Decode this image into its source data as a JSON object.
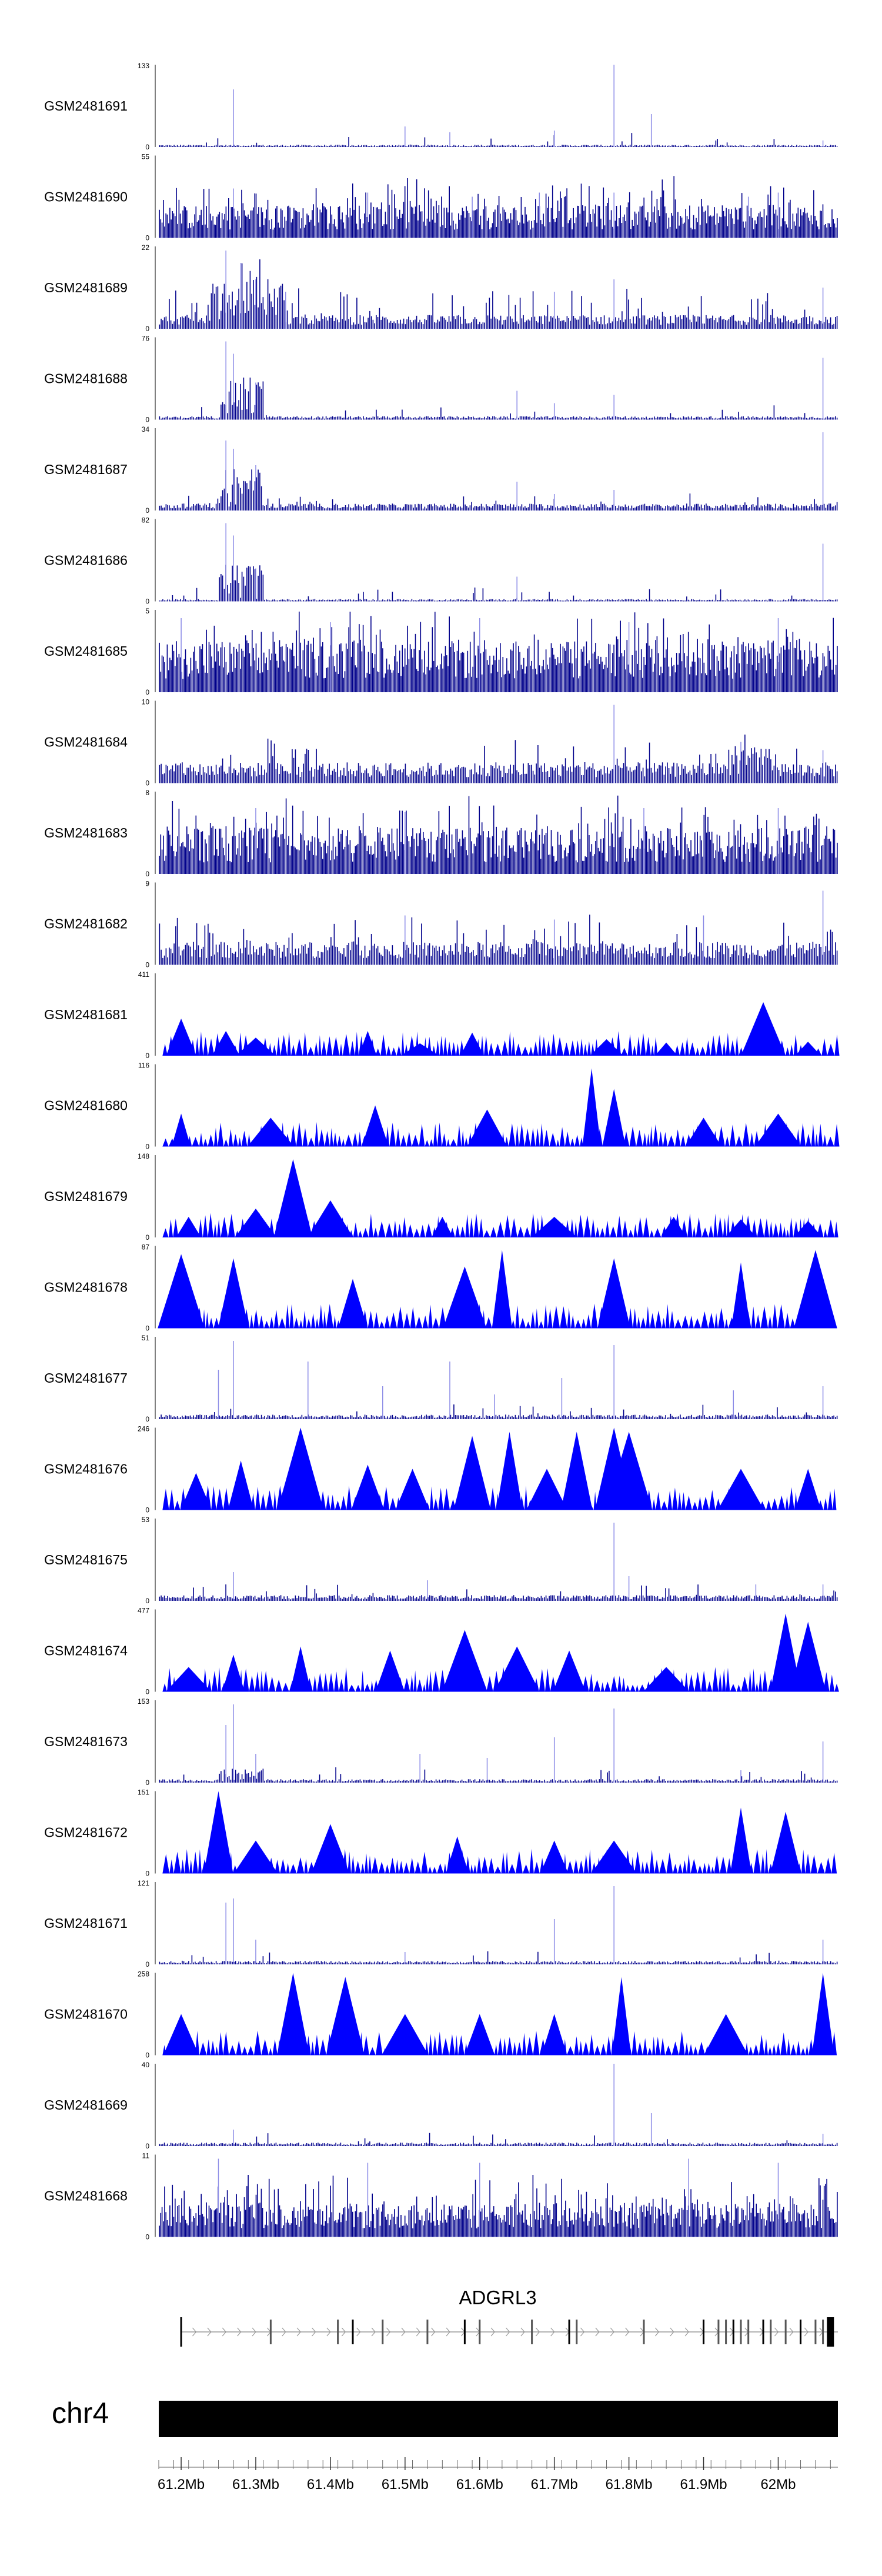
{
  "chart_data": {
    "type": "area",
    "x_unit": "Mb",
    "x_range": [
      61.17,
      62.08
    ],
    "x_ticks": [
      {
        "pos": 61.2,
        "label": "61.2Mb"
      },
      {
        "pos": 61.3,
        "label": "61.3Mb"
      },
      {
        "pos": 61.4,
        "label": "61.4Mb"
      },
      {
        "pos": 61.5,
        "label": "61.5Mb"
      },
      {
        "pos": 61.6,
        "label": "61.6Mb"
      },
      {
        "pos": 61.7,
        "label": "61.7Mb"
      },
      {
        "pos": 61.8,
        "label": "61.8Mb"
      },
      {
        "pos": 61.9,
        "label": "61.9Mb"
      },
      {
        "pos": 62.0,
        "label": "62Mb"
      }
    ],
    "chromosome": "chr4",
    "colors": {
      "signal": "#0000ff",
      "dense": "#00008b",
      "faint": "#8a8ae6",
      "gene": "#000000",
      "intron": "#999999"
    },
    "tracks": [
      {
        "name": "GSM2481691",
        "ymax": 133,
        "ymin_label": "0",
        "ymax_label": "133",
        "style": "sparse",
        "baseline": 0.02,
        "peaks": [
          [
            61.27,
            0.7
          ],
          [
            61.5,
            0.25
          ],
          [
            61.56,
            0.18
          ],
          [
            61.7,
            0.2
          ],
          [
            61.78,
            1.0
          ],
          [
            61.83,
            0.4
          ],
          [
            62.06,
            0.08
          ]
        ],
        "regions": []
      },
      {
        "name": "GSM2481690",
        "ymax": 55,
        "ymin_label": "0",
        "ymax_label": "55",
        "style": "dense",
        "baseline": 0.25,
        "peaks": [
          [
            61.27,
            0.6
          ],
          [
            61.45,
            0.55
          ],
          [
            61.59,
            0.5
          ],
          [
            61.68,
            0.55
          ],
          [
            61.78,
            0.55
          ],
          [
            61.96,
            0.5
          ],
          [
            62.0,
            0.55
          ]
        ],
        "regions": []
      },
      {
        "name": "GSM2481689",
        "ymax": 22,
        "ymin_label": "0",
        "ymax_label": "22",
        "style": "noisy",
        "baseline": 0.12,
        "peaks": [
          [
            61.26,
            0.95
          ],
          [
            61.28,
            0.8
          ],
          [
            61.3,
            0.6
          ],
          [
            61.34,
            0.45
          ],
          [
            61.7,
            0.45
          ],
          [
            61.78,
            0.6
          ],
          [
            62.06,
            0.5
          ]
        ],
        "regions": [
          [
            61.24,
            61.34,
            0.5
          ]
        ]
      },
      {
        "name": "GSM2481688",
        "ymax": 76,
        "ymin_label": "0",
        "ymax_label": "76",
        "style": "sparse",
        "baseline": 0.03,
        "peaks": [
          [
            61.26,
            0.95
          ],
          [
            61.27,
            0.8
          ],
          [
            61.3,
            0.45
          ],
          [
            61.65,
            0.35
          ],
          [
            61.7,
            0.2
          ],
          [
            61.78,
            0.3
          ],
          [
            62.06,
            0.75
          ]
        ],
        "regions": [
          [
            61.25,
            61.31,
            0.5
          ]
        ]
      },
      {
        "name": "GSM2481687",
        "ymax": 34,
        "ymin_label": "0",
        "ymax_label": "34",
        "style": "sparse",
        "baseline": 0.06,
        "peaks": [
          [
            61.26,
            0.85
          ],
          [
            61.27,
            0.75
          ],
          [
            61.3,
            0.55
          ],
          [
            61.65,
            0.35
          ],
          [
            61.7,
            0.2
          ],
          [
            61.78,
            0.25
          ],
          [
            62.06,
            0.95
          ]
        ],
        "regions": [
          [
            61.25,
            61.31,
            0.45
          ]
        ]
      },
      {
        "name": "GSM2481686",
        "ymax": 82,
        "ymin_label": "0",
        "ymax_label": "82",
        "style": "sparse",
        "baseline": 0.02,
        "peaks": [
          [
            61.26,
            0.95
          ],
          [
            61.27,
            0.8
          ],
          [
            61.3,
            0.4
          ],
          [
            61.65,
            0.3
          ],
          [
            62.06,
            0.7
          ]
        ],
        "regions": [
          [
            61.25,
            61.31,
            0.45
          ]
        ]
      },
      {
        "name": "GSM2481685",
        "ymax": 5,
        "ymin_label": "0",
        "ymax_label": "5",
        "style": "dense",
        "baseline": 0.4,
        "peaks": [
          [
            61.2,
            0.9
          ],
          [
            61.4,
            0.85
          ],
          [
            61.6,
            0.9
          ],
          [
            61.8,
            0.85
          ],
          [
            62.0,
            0.9
          ]
        ],
        "regions": []
      },
      {
        "name": "GSM2481684",
        "ymax": 10,
        "ymin_label": "0",
        "ymax_label": "10",
        "style": "noisy",
        "baseline": 0.18,
        "peaks": [
          [
            61.78,
            0.95
          ],
          [
            61.95,
            0.5
          ],
          [
            62.06,
            0.4
          ]
        ],
        "regions": [
          [
            61.93,
            61.99,
            0.35
          ]
        ]
      },
      {
        "name": "GSM2481683",
        "ymax": 8,
        "ymin_label": "0",
        "ymax_label": "8",
        "style": "dense",
        "baseline": 0.35,
        "peaks": [
          [
            61.3,
            0.8
          ],
          [
            61.5,
            0.75
          ],
          [
            61.82,
            0.8
          ],
          [
            62.0,
            0.8
          ]
        ],
        "regions": []
      },
      {
        "name": "GSM2481682",
        "ymax": 9,
        "ymin_label": "0",
        "ymax_label": "9",
        "style": "noisy",
        "baseline": 0.2,
        "peaks": [
          [
            61.5,
            0.6
          ],
          [
            61.7,
            0.55
          ],
          [
            61.9,
            0.6
          ],
          [
            62.06,
            0.9
          ]
        ],
        "regions": []
      },
      {
        "name": "GSM2481681",
        "ymax": 411,
        "ymin_label": "0",
        "ymax_label": "411",
        "style": "triangles",
        "baseline": 0.0,
        "peaks": [
          [
            61.2,
            0.45
          ],
          [
            61.26,
            0.3
          ],
          [
            61.3,
            0.22
          ],
          [
            61.45,
            0.3
          ],
          [
            61.52,
            0.15
          ],
          [
            61.59,
            0.28
          ],
          [
            61.77,
            0.2
          ],
          [
            61.85,
            0.16
          ],
          [
            61.98,
            0.65
          ],
          [
            62.04,
            0.17
          ]
        ],
        "regions": []
      },
      {
        "name": "GSM2481680",
        "ymax": 116,
        "ymin_label": "0",
        "ymax_label": "116",
        "style": "triangles",
        "baseline": 0.0,
        "peaks": [
          [
            61.2,
            0.4
          ],
          [
            61.32,
            0.35
          ],
          [
            61.46,
            0.5
          ],
          [
            61.61,
            0.45
          ],
          [
            61.75,
            0.95
          ],
          [
            61.78,
            0.7
          ],
          [
            61.9,
            0.35
          ],
          [
            62.0,
            0.4
          ]
        ],
        "regions": []
      },
      {
        "name": "GSM2481679",
        "ymax": 148,
        "ymin_label": "0",
        "ymax_label": "148",
        "style": "triangles",
        "baseline": 0.0,
        "peaks": [
          [
            61.21,
            0.25
          ],
          [
            61.3,
            0.35
          ],
          [
            61.35,
            0.95
          ],
          [
            61.4,
            0.45
          ],
          [
            61.55,
            0.25
          ],
          [
            61.7,
            0.25
          ],
          [
            61.86,
            0.25
          ],
          [
            61.95,
            0.22
          ],
          [
            62.04,
            0.2
          ]
        ],
        "regions": []
      },
      {
        "name": "GSM2481678",
        "ymax": 87,
        "ymin_label": "0",
        "ymax_label": "87",
        "style": "triangles",
        "baseline": 0.0,
        "peaks": [
          [
            61.2,
            0.9
          ],
          [
            61.27,
            0.85
          ],
          [
            61.43,
            0.6
          ],
          [
            61.58,
            0.75
          ],
          [
            61.63,
            0.95
          ],
          [
            61.78,
            0.85
          ],
          [
            61.95,
            0.8
          ],
          [
            62.05,
            0.95
          ]
        ],
        "regions": []
      },
      {
        "name": "GSM2481677",
        "ymax": 51,
        "ymin_label": "0",
        "ymax_label": "51",
        "style": "sparse",
        "baseline": 0.04,
        "peaks": [
          [
            61.25,
            0.6
          ],
          [
            61.27,
            0.95
          ],
          [
            61.37,
            0.7
          ],
          [
            61.47,
            0.4
          ],
          [
            61.56,
            0.7
          ],
          [
            61.62,
            0.3
          ],
          [
            61.71,
            0.5
          ],
          [
            61.78,
            0.9
          ],
          [
            61.94,
            0.35
          ],
          [
            62.06,
            0.4
          ]
        ],
        "regions": []
      },
      {
        "name": "GSM2481676",
        "ymax": 246,
        "ymin_label": "0",
        "ymax_label": "246",
        "style": "triangles",
        "baseline": 0.0,
        "peaks": [
          [
            61.22,
            0.45
          ],
          [
            61.28,
            0.6
          ],
          [
            61.36,
            1.0
          ],
          [
            61.45,
            0.55
          ],
          [
            61.51,
            0.5
          ],
          [
            61.59,
            0.9
          ],
          [
            61.64,
            0.95
          ],
          [
            61.69,
            0.5
          ],
          [
            61.73,
            0.95
          ],
          [
            61.78,
            1.0
          ],
          [
            61.8,
            0.95
          ],
          [
            61.95,
            0.5
          ],
          [
            62.04,
            0.5
          ]
        ],
        "regions": []
      },
      {
        "name": "GSM2481675",
        "ymax": 53,
        "ymin_label": "0",
        "ymax_label": "53",
        "style": "sparse",
        "baseline": 0.05,
        "peaks": [
          [
            61.27,
            0.35
          ],
          [
            61.53,
            0.25
          ],
          [
            61.78,
            0.95
          ],
          [
            61.8,
            0.3
          ],
          [
            61.97,
            0.2
          ],
          [
            62.06,
            0.2
          ]
        ],
        "regions": []
      },
      {
        "name": "GSM2481674",
        "ymax": 477,
        "ymin_label": "0",
        "ymax_label": "477",
        "style": "triangles",
        "baseline": 0.0,
        "peaks": [
          [
            61.21,
            0.3
          ],
          [
            61.27,
            0.45
          ],
          [
            61.36,
            0.55
          ],
          [
            61.48,
            0.5
          ],
          [
            61.58,
            0.75
          ],
          [
            61.65,
            0.55
          ],
          [
            61.72,
            0.5
          ],
          [
            61.85,
            0.3
          ],
          [
            62.01,
            0.95
          ],
          [
            62.04,
            0.85
          ]
        ],
        "regions": []
      },
      {
        "name": "GSM2481673",
        "ymax": 153,
        "ymin_label": "0",
        "ymax_label": "153",
        "style": "sparse",
        "baseline": 0.03,
        "peaks": [
          [
            61.26,
            0.7
          ],
          [
            61.27,
            0.95
          ],
          [
            61.3,
            0.35
          ],
          [
            61.52,
            0.35
          ],
          [
            61.61,
            0.3
          ],
          [
            61.7,
            0.55
          ],
          [
            61.78,
            0.9
          ],
          [
            61.95,
            0.15
          ],
          [
            62.06,
            0.5
          ]
        ],
        "regions": [
          [
            61.25,
            61.31,
            0.15
          ]
        ]
      },
      {
        "name": "GSM2481672",
        "ymax": 151,
        "ymin_label": "0",
        "ymax_label": "151",
        "style": "triangles",
        "baseline": 0.0,
        "peaks": [
          [
            61.25,
            1.0
          ],
          [
            61.3,
            0.4
          ],
          [
            61.4,
            0.6
          ],
          [
            61.57,
            0.45
          ],
          [
            61.7,
            0.4
          ],
          [
            61.78,
            0.4
          ],
          [
            61.95,
            0.8
          ],
          [
            62.01,
            0.75
          ]
        ],
        "regions": []
      },
      {
        "name": "GSM2481671",
        "ymax": 121,
        "ymin_label": "0",
        "ymax_label": "121",
        "style": "sparse",
        "baseline": 0.03,
        "peaks": [
          [
            61.26,
            0.75
          ],
          [
            61.27,
            0.8
          ],
          [
            61.3,
            0.3
          ],
          [
            61.5,
            0.15
          ],
          [
            61.7,
            0.55
          ],
          [
            61.78,
            0.95
          ],
          [
            62.06,
            0.3
          ]
        ],
        "regions": []
      },
      {
        "name": "GSM2481670",
        "ymax": 258,
        "ymin_label": "0",
        "ymax_label": "258",
        "style": "triangles",
        "baseline": 0.0,
        "peaks": [
          [
            61.2,
            0.5
          ],
          [
            61.35,
            1.0
          ],
          [
            61.42,
            0.95
          ],
          [
            61.5,
            0.5
          ],
          [
            61.6,
            0.5
          ],
          [
            61.7,
            0.5
          ],
          [
            61.79,
            0.95
          ],
          [
            61.93,
            0.5
          ],
          [
            62.06,
            1.0
          ]
        ],
        "regions": []
      },
      {
        "name": "GSM2481669",
        "ymax": 40,
        "ymin_label": "0",
        "ymax_label": "40",
        "style": "sparse",
        "baseline": 0.03,
        "peaks": [
          [
            61.27,
            0.2
          ],
          [
            61.78,
            1.0
          ],
          [
            61.83,
            0.4
          ],
          [
            62.06,
            0.15
          ]
        ],
        "regions": []
      },
      {
        "name": "GSM2481668",
        "ymax": 11,
        "ymin_label": "0",
        "ymax_label": "11",
        "style": "dense",
        "baseline": 0.25,
        "peaks": [
          [
            61.25,
            0.95
          ],
          [
            61.45,
            0.9
          ],
          [
            61.6,
            0.9
          ],
          [
            61.88,
            0.95
          ],
          [
            62.0,
            0.9
          ]
        ],
        "regions": []
      }
    ],
    "gene": {
      "name": "ADGRL3",
      "start": 61.2,
      "end": 62.08,
      "strand": "+",
      "exons": [
        61.2,
        61.32,
        61.41,
        61.43,
        61.47,
        61.53,
        61.58,
        61.6,
        61.67,
        61.72,
        61.73,
        61.82,
        61.9,
        61.92,
        61.93,
        61.94,
        61.95,
        61.96,
        61.98,
        61.99,
        62.01,
        62.03,
        62.05,
        62.06,
        62.07
      ]
    }
  }
}
